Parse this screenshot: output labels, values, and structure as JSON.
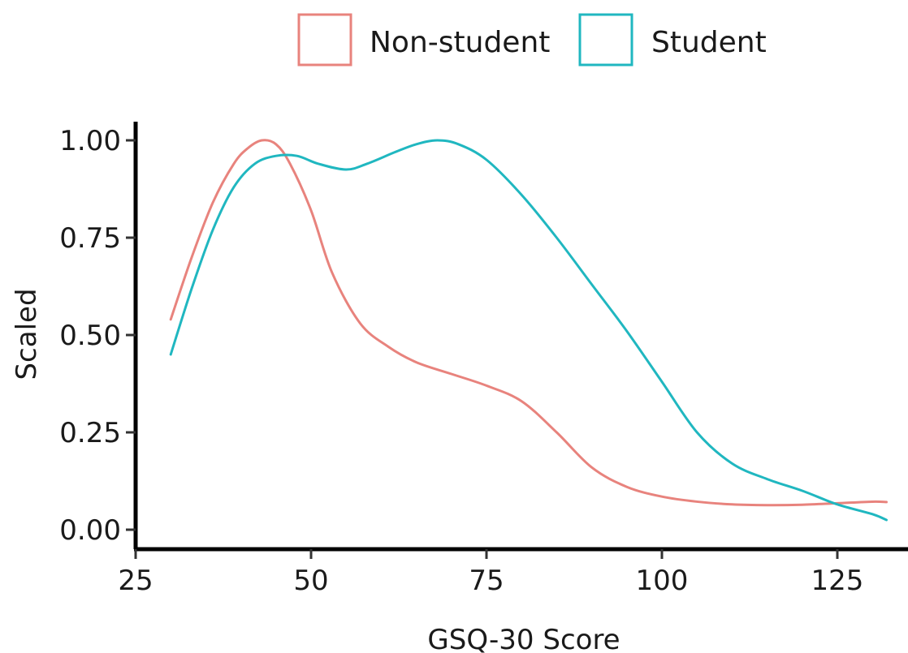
{
  "chart_data": {
    "type": "line",
    "xlabel": "GSQ-30 Score",
    "ylabel": "Scaled",
    "xlim": [
      25,
      132
    ],
    "ylim": [
      -0.04,
      1.04
    ],
    "x_ticks": [
      25,
      50,
      75,
      100,
      125
    ],
    "y_ticks": [
      0.0,
      0.25,
      0.5,
      0.75,
      1.0
    ],
    "y_tick_labels": [
      "0.00",
      "0.25",
      "0.50",
      "0.75",
      "1.00"
    ],
    "grid": false,
    "legend_position": "top",
    "series": [
      {
        "name": "Non-student",
        "color": "#e8837d",
        "x": [
          30,
          33,
          36,
          39,
          41,
          43,
          45,
          47,
          50,
          53,
          57,
          61,
          65,
          70,
          75,
          80,
          85,
          90,
          95,
          100,
          105,
          110,
          115,
          120,
          125,
          130,
          132
        ],
        "y": [
          0.54,
          0.7,
          0.84,
          0.94,
          0.98,
          1.0,
          0.99,
          0.94,
          0.82,
          0.66,
          0.53,
          0.47,
          0.43,
          0.4,
          0.37,
          0.33,
          0.25,
          0.16,
          0.11,
          0.085,
          0.072,
          0.065,
          0.063,
          0.064,
          0.068,
          0.072,
          0.071
        ]
      },
      {
        "name": "Student",
        "color": "#20b7c0",
        "x": [
          30,
          33,
          36,
          39,
          42,
          45,
          48,
          51,
          55,
          58,
          62,
          65,
          68,
          71,
          75,
          80,
          85,
          90,
          95,
          100,
          105,
          110,
          115,
          120,
          125,
          130,
          132
        ],
        "y": [
          0.45,
          0.62,
          0.77,
          0.88,
          0.94,
          0.96,
          0.96,
          0.94,
          0.925,
          0.94,
          0.97,
          0.99,
          1.0,
          0.99,
          0.95,
          0.86,
          0.75,
          0.63,
          0.51,
          0.38,
          0.25,
          0.17,
          0.13,
          0.1,
          0.065,
          0.04,
          0.025
        ]
      }
    ]
  }
}
